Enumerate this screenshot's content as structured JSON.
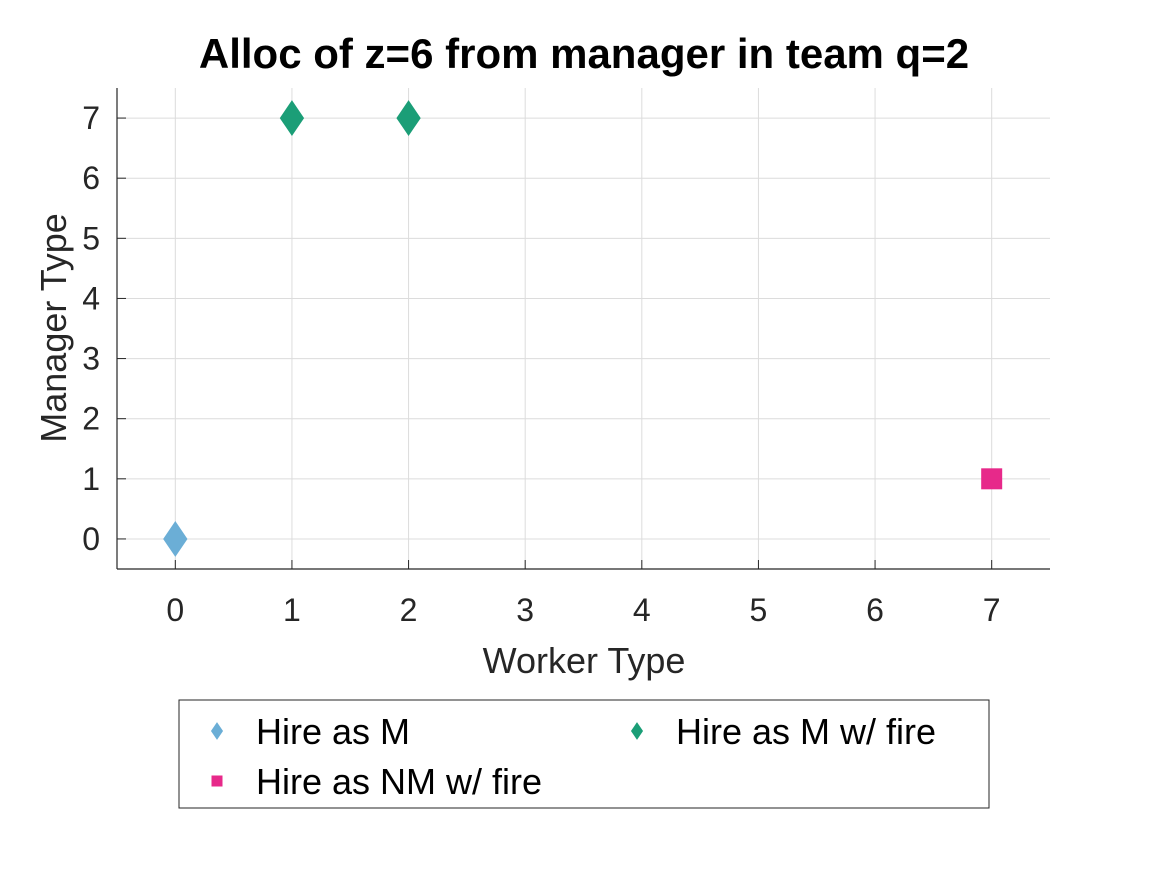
{
  "chart_data": {
    "type": "scatter",
    "title": "Alloc of z=6 from manager in team q=2",
    "xlabel": "Worker Type",
    "ylabel": "Manager Type",
    "xlim": [
      -0.5,
      7.5
    ],
    "ylim": [
      -0.5,
      7.5
    ],
    "xticks": [
      0,
      1,
      2,
      3,
      4,
      5,
      6,
      7
    ],
    "yticks": [
      0,
      1,
      2,
      3,
      4,
      5,
      6,
      7
    ],
    "grid": true,
    "legend_position": "bottom-outside",
    "series": [
      {
        "name": "Hire as M",
        "marker": "diamond",
        "color": "#6baed6",
        "points": [
          {
            "x": 0,
            "y": 0
          }
        ]
      },
      {
        "name": "Hire as M w/ fire",
        "marker": "diamond",
        "color": "#1b9e77",
        "points": [
          {
            "x": 1,
            "y": 7
          },
          {
            "x": 2,
            "y": 7
          }
        ]
      },
      {
        "name": "Hire as NM w/ fire",
        "marker": "square",
        "color": "#e7298a",
        "points": [
          {
            "x": 7,
            "y": 1
          }
        ]
      }
    ]
  }
}
